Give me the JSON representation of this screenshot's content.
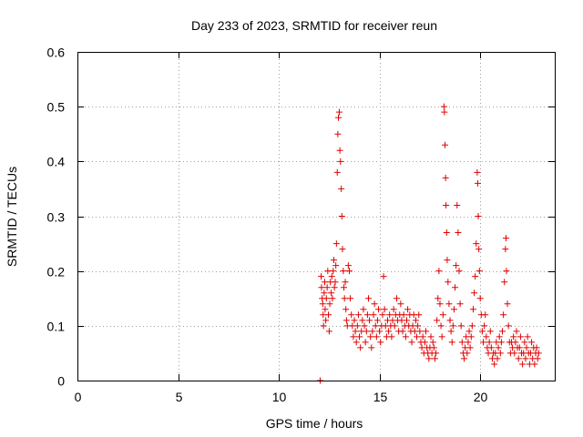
{
  "chart_data": {
    "type": "scatter",
    "title": "Day 233 of 2023, SRMTID for receiver reun",
    "xlabel": "GPS time / hours",
    "ylabel": "SRMTID / TECUs",
    "xlim": [
      0,
      23.7
    ],
    "ylim": [
      0,
      0.6
    ],
    "xticks": [
      0,
      5,
      10,
      15,
      20
    ],
    "yticks": [
      0,
      0.1,
      0.2,
      0.3,
      0.4,
      0.5,
      0.6
    ],
    "xtick_labels": [
      "0",
      "5",
      "10",
      "15",
      "20"
    ],
    "ytick_labels": [
      "0",
      "0.1",
      "0.2",
      "0.3",
      "0.4",
      "0.5",
      "0.6"
    ],
    "grid": true,
    "marker": "+",
    "color": "#e00000",
    "series": [
      {
        "name": "SRMTID",
        "points": [
          [
            12.05,
            0.0
          ],
          [
            12.1,
            0.19
          ],
          [
            12.12,
            0.17
          ],
          [
            12.15,
            0.15
          ],
          [
            12.18,
            0.14
          ],
          [
            12.2,
            0.12
          ],
          [
            12.22,
            0.1
          ],
          [
            12.25,
            0.16
          ],
          [
            12.28,
            0.18
          ],
          [
            12.3,
            0.13
          ],
          [
            12.33,
            0.11
          ],
          [
            12.36,
            0.15
          ],
          [
            12.4,
            0.17
          ],
          [
            12.43,
            0.2
          ],
          [
            12.46,
            0.12
          ],
          [
            12.5,
            0.09
          ],
          [
            12.53,
            0.14
          ],
          [
            12.56,
            0.18
          ],
          [
            12.6,
            0.16
          ],
          [
            12.63,
            0.19
          ],
          [
            12.66,
            0.15
          ],
          [
            12.7,
            0.2
          ],
          [
            12.73,
            0.22
          ],
          [
            12.76,
            0.17
          ],
          [
            12.8,
            0.18
          ],
          [
            12.83,
            0.21
          ],
          [
            12.86,
            0.25
          ],
          [
            12.9,
            0.38
          ],
          [
            12.93,
            0.45
          ],
          [
            12.96,
            0.48
          ],
          [
            13.0,
            0.49
          ],
          [
            13.03,
            0.42
          ],
          [
            13.06,
            0.4
          ],
          [
            13.1,
            0.35
          ],
          [
            13.13,
            0.3
          ],
          [
            13.16,
            0.24
          ],
          [
            13.2,
            0.2
          ],
          [
            13.23,
            0.17
          ],
          [
            13.26,
            0.15
          ],
          [
            13.3,
            0.18
          ],
          [
            13.33,
            0.13
          ],
          [
            13.36,
            0.11
          ],
          [
            13.4,
            0.1
          ],
          [
            13.45,
            0.21
          ],
          [
            13.5,
            0.2
          ],
          [
            13.55,
            0.15
          ],
          [
            13.6,
            0.12
          ],
          [
            13.65,
            0.1
          ],
          [
            13.7,
            0.08
          ],
          [
            13.75,
            0.11
          ],
          [
            13.8,
            0.09
          ],
          [
            13.85,
            0.07
          ],
          [
            13.9,
            0.1
          ],
          [
            13.95,
            0.12
          ],
          [
            14.0,
            0.08
          ],
          [
            14.05,
            0.06
          ],
          [
            14.1,
            0.09
          ],
          [
            14.15,
            0.11
          ],
          [
            14.2,
            0.13
          ],
          [
            14.25,
            0.1
          ],
          [
            14.3,
            0.07
          ],
          [
            14.35,
            0.09
          ],
          [
            14.4,
            0.12
          ],
          [
            14.45,
            0.15
          ],
          [
            14.5,
            0.11
          ],
          [
            14.55,
            0.08
          ],
          [
            14.6,
            0.06
          ],
          [
            14.65,
            0.09
          ],
          [
            14.7,
            0.12
          ],
          [
            14.75,
            0.14
          ],
          [
            14.8,
            0.1
          ],
          [
            14.85,
            0.08
          ],
          [
            14.9,
            0.11
          ],
          [
            14.95,
            0.13
          ],
          [
            15.0,
            0.09
          ],
          [
            15.05,
            0.07
          ],
          [
            15.1,
            0.1
          ],
          [
            15.15,
            0.12
          ],
          [
            15.2,
            0.19
          ],
          [
            15.25,
            0.13
          ],
          [
            15.3,
            0.1
          ],
          [
            15.35,
            0.08
          ],
          [
            15.4,
            0.11
          ],
          [
            15.45,
            0.09
          ],
          [
            15.5,
            0.12
          ],
          [
            15.55,
            0.1
          ],
          [
            15.6,
            0.08
          ],
          [
            15.65,
            0.11
          ],
          [
            15.7,
            0.13
          ],
          [
            15.75,
            0.1
          ],
          [
            15.8,
            0.12
          ],
          [
            15.85,
            0.15
          ],
          [
            15.9,
            0.11
          ],
          [
            15.95,
            0.09
          ],
          [
            16.0,
            0.12
          ],
          [
            16.05,
            0.14
          ],
          [
            16.1,
            0.11
          ],
          [
            16.15,
            0.09
          ],
          [
            16.2,
            0.12
          ],
          [
            16.25,
            0.1
          ],
          [
            16.3,
            0.08
          ],
          [
            16.35,
            0.11
          ],
          [
            16.4,
            0.13
          ],
          [
            16.45,
            0.1
          ],
          [
            16.5,
            0.12
          ],
          [
            16.55,
            0.09
          ],
          [
            16.6,
            0.07
          ],
          [
            16.65,
            0.1
          ],
          [
            16.7,
            0.12
          ],
          [
            16.75,
            0.09
          ],
          [
            16.8,
            0.11
          ],
          [
            16.85,
            0.08
          ],
          [
            16.9,
            0.1
          ],
          [
            16.95,
            0.12
          ],
          [
            17.0,
            0.09
          ],
          [
            17.05,
            0.07
          ],
          [
            17.1,
            0.06
          ],
          [
            17.15,
            0.08
          ],
          [
            17.2,
            0.05
          ],
          [
            17.25,
            0.07
          ],
          [
            17.3,
            0.09
          ],
          [
            17.35,
            0.06
          ],
          [
            17.4,
            0.05
          ],
          [
            17.45,
            0.04
          ],
          [
            17.5,
            0.06
          ],
          [
            17.55,
            0.08
          ],
          [
            17.6,
            0.05
          ],
          [
            17.65,
            0.07
          ],
          [
            17.7,
            0.06
          ],
          [
            17.75,
            0.04
          ],
          [
            17.8,
            0.05
          ],
          [
            17.85,
            0.11
          ],
          [
            17.9,
            0.15
          ],
          [
            17.95,
            0.2
          ],
          [
            18.0,
            0.14
          ],
          [
            18.05,
            0.1
          ],
          [
            18.1,
            0.08
          ],
          [
            18.15,
            0.12
          ],
          [
            18.2,
            0.5
          ],
          [
            18.22,
            0.49
          ],
          [
            18.25,
            0.43
          ],
          [
            18.28,
            0.37
          ],
          [
            18.3,
            0.32
          ],
          [
            18.33,
            0.27
          ],
          [
            18.36,
            0.22
          ],
          [
            18.4,
            0.18
          ],
          [
            18.45,
            0.14
          ],
          [
            18.5,
            0.11
          ],
          [
            18.55,
            0.09
          ],
          [
            18.6,
            0.07
          ],
          [
            18.65,
            0.1
          ],
          [
            18.7,
            0.13
          ],
          [
            18.75,
            0.17
          ],
          [
            18.8,
            0.21
          ],
          [
            18.85,
            0.32
          ],
          [
            18.9,
            0.27
          ],
          [
            18.95,
            0.2
          ],
          [
            19.0,
            0.14
          ],
          [
            19.05,
            0.1
          ],
          [
            19.1,
            0.07
          ],
          [
            19.15,
            0.05
          ],
          [
            19.2,
            0.04
          ],
          [
            19.25,
            0.06
          ],
          [
            19.3,
            0.08
          ],
          [
            19.35,
            0.05
          ],
          [
            19.4,
            0.07
          ],
          [
            19.45,
            0.09
          ],
          [
            19.5,
            0.06
          ],
          [
            19.55,
            0.08
          ],
          [
            19.6,
            0.1
          ],
          [
            19.65,
            0.13
          ],
          [
            19.7,
            0.16
          ],
          [
            19.75,
            0.19
          ],
          [
            19.8,
            0.25
          ],
          [
            19.85,
            0.38
          ],
          [
            19.88,
            0.36
          ],
          [
            19.9,
            0.3
          ],
          [
            19.93,
            0.24
          ],
          [
            19.96,
            0.2
          ],
          [
            20.0,
            0.15
          ],
          [
            20.05,
            0.12
          ],
          [
            20.1,
            0.09
          ],
          [
            20.15,
            0.07
          ],
          [
            20.2,
            0.1
          ],
          [
            20.25,
            0.12
          ],
          [
            20.3,
            0.08
          ],
          [
            20.35,
            0.06
          ],
          [
            20.4,
            0.05
          ],
          [
            20.45,
            0.07
          ],
          [
            20.5,
            0.09
          ],
          [
            20.55,
            0.06
          ],
          [
            20.6,
            0.04
          ],
          [
            20.65,
            0.05
          ],
          [
            20.7,
            0.03
          ],
          [
            20.75,
            0.05
          ],
          [
            20.8,
            0.07
          ],
          [
            20.85,
            0.04
          ],
          [
            20.9,
            0.06
          ],
          [
            20.95,
            0.08
          ],
          [
            21.0,
            0.05
          ],
          [
            21.05,
            0.07
          ],
          [
            21.1,
            0.09
          ],
          [
            21.15,
            0.12
          ],
          [
            21.2,
            0.18
          ],
          [
            21.25,
            0.24
          ],
          [
            21.28,
            0.26
          ],
          [
            21.3,
            0.2
          ],
          [
            21.35,
            0.14
          ],
          [
            21.4,
            0.1
          ],
          [
            21.45,
            0.07
          ],
          [
            21.5,
            0.05
          ],
          [
            21.55,
            0.07
          ],
          [
            21.6,
            0.06
          ],
          [
            21.65,
            0.08
          ],
          [
            21.7,
            0.05
          ],
          [
            21.75,
            0.07
          ],
          [
            21.8,
            0.09
          ],
          [
            21.85,
            0.06
          ],
          [
            21.9,
            0.04
          ],
          [
            21.95,
            0.06
          ],
          [
            22.0,
            0.08
          ],
          [
            22.05,
            0.05
          ],
          [
            22.1,
            0.03
          ],
          [
            22.15,
            0.05
          ],
          [
            22.2,
            0.07
          ],
          [
            22.25,
            0.04
          ],
          [
            22.3,
            0.06
          ],
          [
            22.35,
            0.08
          ],
          [
            22.4,
            0.05
          ],
          [
            22.45,
            0.03
          ],
          [
            22.5,
            0.05
          ],
          [
            22.55,
            0.07
          ],
          [
            22.6,
            0.04
          ],
          [
            22.65,
            0.06
          ],
          [
            22.7,
            0.03
          ],
          [
            22.75,
            0.05
          ],
          [
            22.8,
            0.06
          ],
          [
            22.85,
            0.04
          ],
          [
            22.9,
            0.05
          ]
        ]
      }
    ]
  }
}
